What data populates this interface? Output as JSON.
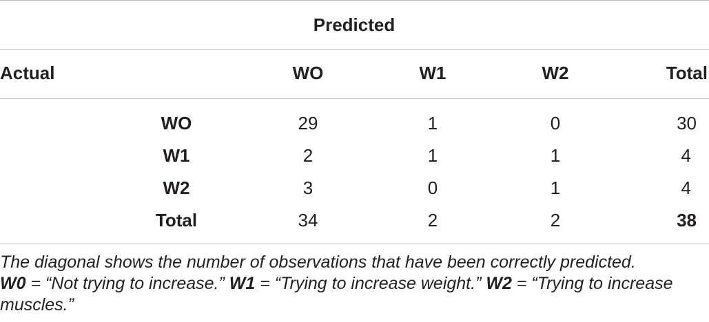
{
  "table": {
    "spanner": "Predicted",
    "header": {
      "row_label": "Actual",
      "columns": [
        "WO",
        "W1",
        "W2",
        "Total"
      ]
    },
    "rows": [
      {
        "label": "WO",
        "values": [
          "29",
          "1",
          "0",
          "30"
        ]
      },
      {
        "label": "W1",
        "values": [
          "2",
          "1",
          "1",
          "4"
        ]
      },
      {
        "label": "W2",
        "values": [
          "3",
          "0",
          "1",
          "4"
        ]
      },
      {
        "label": "Total",
        "values": [
          "34",
          "2",
          "2",
          "38"
        ]
      }
    ]
  },
  "footnote": {
    "line1": "The diagonal shows the number of observations that have been correctly predicted.",
    "w0_key": "W0",
    "w0_text": " = “Not trying to increase.” ",
    "w1_key": "W1",
    "w1_text": " = “Trying to increase weight.” ",
    "w2_key": "W2",
    "w2_text": " = “Trying to increase muscles.”"
  }
}
